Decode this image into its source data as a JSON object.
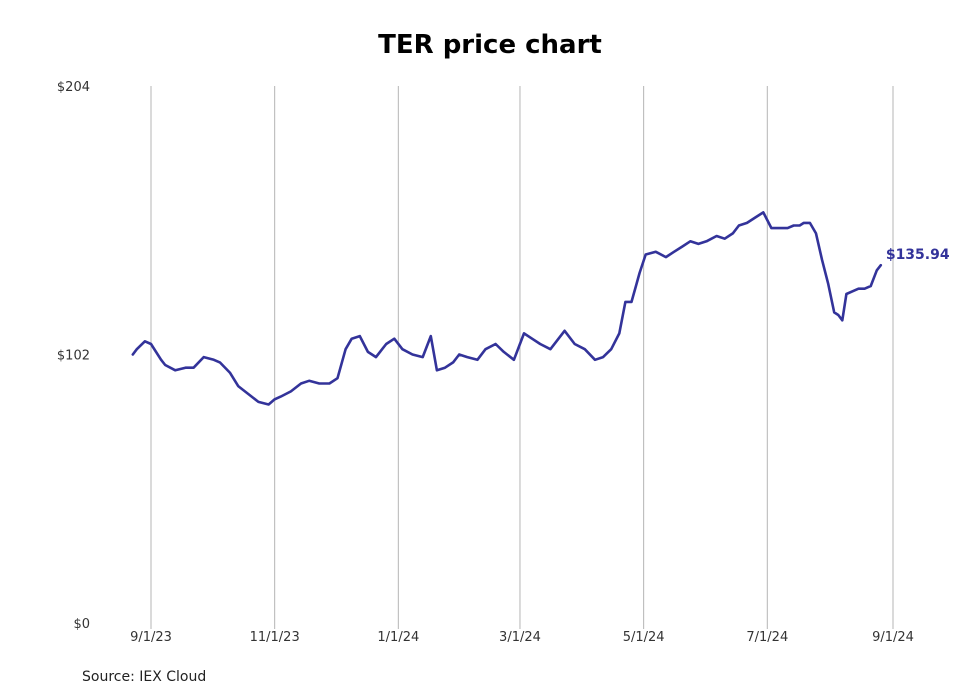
{
  "chart_data": {
    "type": "line",
    "title": "TER price chart",
    "source": "Source: IEX Cloud",
    "ylim": [
      0,
      204
    ],
    "xlim": [
      "2023-08-23",
      "2024-09-01"
    ],
    "y_ticks": [
      {
        "value": 0,
        "label": "$0"
      },
      {
        "value": 102,
        "label": "$102"
      },
      {
        "value": 204,
        "label": "$204"
      }
    ],
    "x_ticks": [
      {
        "date": "2023-09-01",
        "label": "9/1/23"
      },
      {
        "date": "2023-11-01",
        "label": "11/1/23"
      },
      {
        "date": "2024-01-01",
        "label": "1/1/24"
      },
      {
        "date": "2024-03-01",
        "label": "3/1/24"
      },
      {
        "date": "2024-05-01",
        "label": "5/1/24"
      },
      {
        "date": "2024-07-01",
        "label": "7/1/24"
      },
      {
        "date": "2024-09-01",
        "label": "9/1/24"
      }
    ],
    "grid": "vertical",
    "line_color": "#33339a",
    "last_label": "$135.94",
    "series": [
      {
        "x": [
          "2023-08-23",
          "2023-08-25",
          "2023-08-29",
          "2023-09-01",
          "2023-09-06",
          "2023-09-08",
          "2023-09-13",
          "2023-09-18",
          "2023-09-22",
          "2023-09-27",
          "2023-10-02",
          "2023-10-05",
          "2023-10-10",
          "2023-10-14",
          "2023-10-19",
          "2023-10-24",
          "2023-10-29",
          "2023-11-01",
          "2023-11-04",
          "2023-11-09",
          "2023-11-14",
          "2023-11-18",
          "2023-11-23",
          "2023-11-28",
          "2023-12-02",
          "2023-12-06",
          "2023-12-09",
          "2023-12-13",
          "2023-12-17",
          "2023-12-21",
          "2023-12-26",
          "2023-12-30",
          "2024-01-03",
          "2024-01-08",
          "2024-01-13",
          "2024-01-17",
          "2024-01-20",
          "2024-01-24",
          "2024-01-28",
          "2024-01-31",
          "2024-02-04",
          "2024-02-09",
          "2024-02-13",
          "2024-02-18",
          "2024-02-22",
          "2024-02-27",
          "2024-03-03",
          "2024-03-07",
          "2024-03-11",
          "2024-03-16",
          "2024-03-20",
          "2024-03-23",
          "2024-03-28",
          "2024-04-02",
          "2024-04-07",
          "2024-04-11",
          "2024-04-15",
          "2024-04-19",
          "2024-04-22",
          "2024-04-25",
          "2024-04-29",
          "2024-05-02",
          "2024-05-07",
          "2024-05-12",
          "2024-05-16",
          "2024-05-20",
          "2024-05-24",
          "2024-05-28",
          "2024-06-01",
          "2024-06-06",
          "2024-06-10",
          "2024-06-14",
          "2024-06-17",
          "2024-06-21",
          "2024-06-25",
          "2024-06-29",
          "2024-07-03",
          "2024-07-07",
          "2024-07-11",
          "2024-07-14",
          "2024-07-17",
          "2024-07-19",
          "2024-07-22",
          "2024-07-25",
          "2024-07-28",
          "2024-07-31",
          "2024-08-03",
          "2024-08-05",
          "2024-08-07",
          "2024-08-09",
          "2024-08-12",
          "2024-08-15",
          "2024-08-18",
          "2024-08-21",
          "2024-08-24",
          "2024-08-26"
        ],
        "values": [
          102,
          104,
          107,
          106,
          100,
          98,
          96,
          97,
          97,
          101,
          100,
          99,
          95,
          90,
          87,
          84,
          83,
          85,
          86,
          88,
          91,
          92,
          91,
          91,
          93,
          104,
          108,
          109,
          103,
          101,
          106,
          108,
          104,
          102,
          101,
          109,
          96,
          97,
          99,
          102,
          101,
          100,
          104,
          106,
          103,
          100,
          110,
          108,
          106,
          104,
          108,
          111,
          106,
          104,
          100,
          101,
          104,
          110,
          122,
          122,
          133,
          140,
          141,
          139,
          141,
          143,
          145,
          144,
          145,
          147,
          146,
          148,
          151,
          152,
          154,
          156,
          150,
          150,
          150,
          151,
          151,
          152,
          152,
          148,
          138,
          129,
          118,
          117,
          115,
          125,
          126,
          127,
          127,
          128,
          134,
          135.94
        ]
      }
    ]
  }
}
